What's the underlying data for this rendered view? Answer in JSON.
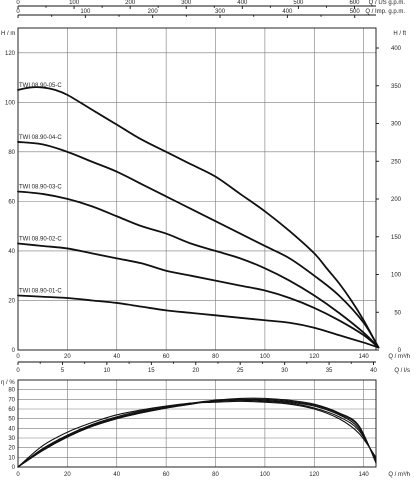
{
  "chart_data": [
    {
      "type": "line",
      "title": "",
      "top_scales": [
        {
          "label": "Q / US g.p.m.",
          "ticks": [
            0,
            100,
            200,
            300,
            400,
            500,
            600
          ],
          "range": [
            0,
            638.4
          ]
        },
        {
          "label": "Q / Imp. g.p.m.",
          "ticks": [
            0,
            100,
            200,
            300,
            400,
            500
          ],
          "range": [
            0,
            531.6
          ]
        }
      ],
      "xlabel": "Q / m³/h",
      "xlim": [
        0,
        145
      ],
      "xticks": [
        0,
        20,
        40,
        60,
        80,
        100,
        120,
        140
      ],
      "ylabel": "H / m",
      "ylim": [
        0,
        130
      ],
      "yticks": [
        0,
        20,
        40,
        60,
        80,
        100,
        120
      ],
      "y2label": "H / ft",
      "y2ticks": [
        0,
        50,
        100,
        150,
        200,
        250,
        300,
        350,
        400
      ],
      "grid": true,
      "series": [
        {
          "name": "TWI 08.90-05-C",
          "x": [
            0,
            5,
            10,
            15,
            20,
            30,
            40,
            50,
            60,
            70,
            80,
            90,
            100,
            110,
            120,
            125,
            130,
            135,
            140,
            146
          ],
          "y": [
            105,
            106,
            106,
            105,
            103,
            97,
            91,
            85,
            80,
            75,
            70,
            63,
            56,
            48,
            39,
            33,
            27,
            20,
            12,
            1
          ]
        },
        {
          "name": "TWI 08.90-04-C",
          "x": [
            0,
            10,
            20,
            30,
            40,
            50,
            60,
            70,
            80,
            90,
            100,
            110,
            120,
            130,
            140,
            146
          ],
          "y": [
            84,
            83,
            80,
            76,
            72,
            67,
            62,
            57,
            52,
            47,
            42,
            37,
            30,
            22,
            11,
            1
          ]
        },
        {
          "name": "TWI 08.90-03-C",
          "x": [
            0,
            10,
            20,
            30,
            40,
            50,
            60,
            70,
            80,
            90,
            100,
            110,
            120,
            130,
            140,
            146
          ],
          "y": [
            64,
            63,
            61,
            58,
            54,
            50,
            47,
            43,
            40,
            37,
            33,
            28,
            22,
            15,
            7,
            1
          ]
        },
        {
          "name": "TWI 08.90-02-C",
          "x": [
            0,
            10,
            20,
            30,
            40,
            50,
            60,
            70,
            80,
            90,
            100,
            110,
            120,
            130,
            140,
            146
          ],
          "y": [
            43,
            42,
            41,
            39,
            37,
            35,
            32,
            30,
            28,
            26,
            24,
            21,
            17,
            12,
            6,
            1
          ]
        },
        {
          "name": "TWI 08.90-01-C",
          "x": [
            0,
            10,
            20,
            30,
            40,
            50,
            60,
            70,
            80,
            90,
            100,
            110,
            120,
            130,
            140,
            146
          ],
          "y": [
            22,
            21.5,
            21,
            20,
            19,
            17.5,
            16,
            15,
            14,
            13,
            12,
            11,
            9,
            6,
            3,
            1
          ]
        }
      ]
    },
    {
      "type": "line",
      "title": "",
      "top_scale": {
        "label": "Q / l/s",
        "ticks": [
          0,
          5,
          10,
          15,
          20,
          25,
          30,
          35,
          40
        ],
        "range": [
          0,
          40.28
        ]
      },
      "xlabel": "Q / m³/h",
      "xlim": [
        0,
        145
      ],
      "xticks": [
        0,
        20,
        40,
        60,
        80,
        100,
        120,
        140
      ],
      "ylabel": "η / %",
      "ylim": [
        0,
        90
      ],
      "yticks": [
        0,
        10,
        20,
        30,
        40,
        50,
        60,
        70,
        80
      ],
      "grid": true,
      "series": [
        {
          "x": [
            0,
            10,
            20,
            30,
            40,
            50,
            60,
            70,
            80,
            90,
            100,
            110,
            120,
            130,
            138,
            145
          ],
          "y": [
            0,
            22,
            36,
            46,
            54,
            59,
            63,
            66,
            67,
            68,
            67,
            65,
            60,
            50,
            35,
            10
          ]
        },
        {
          "x": [
            0,
            10,
            20,
            30,
            40,
            50,
            60,
            70,
            80,
            90,
            100,
            110,
            120,
            130,
            138,
            145
          ],
          "y": [
            0,
            19,
            33,
            44,
            52,
            58,
            62,
            66,
            68,
            69,
            68,
            66,
            61,
            52,
            38,
            8
          ]
        },
        {
          "x": [
            0,
            10,
            20,
            30,
            40,
            50,
            60,
            70,
            80,
            90,
            100,
            110,
            120,
            130,
            138,
            145
          ],
          "y": [
            0,
            18,
            32,
            43,
            51,
            57,
            62,
            66,
            69,
            70,
            69,
            67,
            63,
            54,
            40,
            6
          ]
        },
        {
          "x": [
            0,
            10,
            20,
            30,
            40,
            50,
            60,
            70,
            80,
            90,
            100,
            110,
            120,
            130,
            138,
            145
          ],
          "y": [
            0,
            17,
            31,
            42,
            50,
            56,
            61,
            65,
            69,
            70,
            70,
            68,
            64,
            55,
            42,
            5
          ]
        },
        {
          "x": [
            0,
            10,
            20,
            30,
            40,
            50,
            60,
            70,
            80,
            90,
            100,
            110,
            120,
            130,
            138,
            145
          ],
          "y": [
            0,
            17,
            31,
            42,
            50,
            56,
            61,
            65,
            69,
            71,
            71,
            69,
            65,
            56,
            43,
            4
          ]
        }
      ]
    }
  ]
}
